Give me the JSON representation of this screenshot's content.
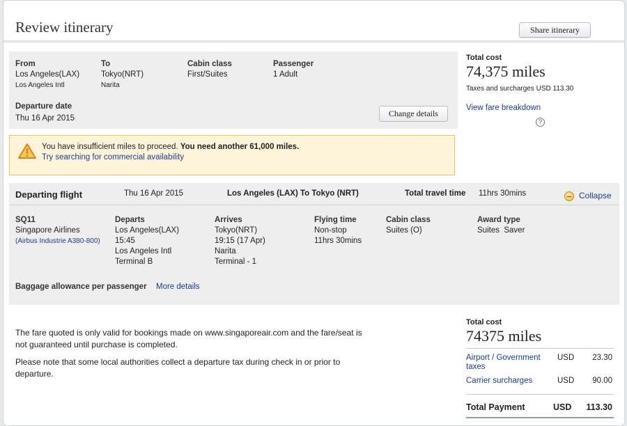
{
  "header": {
    "title": "Review itinerary",
    "share_label": "Share itinerary"
  },
  "summary": {
    "from_label": "From",
    "from_city": "Los Angeles(LAX)",
    "from_airport": "Los Angeles Intl",
    "to_label": "To",
    "to_city": "Tokyo(NRT)",
    "to_airport": "Narita",
    "cabin_label": "Cabin class",
    "cabin_value": "First/Suites",
    "passenger_label": "Passenger",
    "passenger_value": "1 Adult",
    "departure_label": "Departure date",
    "departure_value": "Thu 16 Apr 2015",
    "change_label": "Change details"
  },
  "total_top": {
    "label": "Total cost",
    "miles": "74,375 miles",
    "taxes": "Taxes and surcharges USD 113.30",
    "breakdown_link": "View fare breakdown",
    "help_glyph": "?"
  },
  "warning": {
    "text": "You have insufficient miles to proceed. ",
    "text_bold": "You need another 61,000 miles.",
    "link": "Try searching for commercial availability"
  },
  "flight": {
    "title": "Departing flight",
    "date": "Thu 16 Apr 2015",
    "route": "Los Angeles (LAX) To Tokyo (NRT)",
    "travel_time_label": "Total travel time",
    "travel_time_value": "11hrs 30mins",
    "collapse_label": "Collapse",
    "number": "SQ11",
    "airline": "Singapore Airlines",
    "aircraft": "(Airbus Industrie A380-800)",
    "departs_label": "Departs",
    "departs_city": "Los Angeles(LAX)",
    "departs_time": "15:45",
    "departs_airport": "Los Angeles Intl",
    "departs_terminal": "Terminal B",
    "arrives_label": "Arrives",
    "arrives_city": "Tokyo(NRT)",
    "arrives_time": "19:15 (17 Apr)",
    "arrives_airport": "Narita",
    "arrives_terminal": "Terminal - 1",
    "flying_label": "Flying time",
    "flying_stops": "Non-stop",
    "flying_duration": "11hrs 30mins",
    "cabin_label": "Cabin class",
    "cabin_value": "Suites (O)",
    "award_label": "Award type",
    "award_value": "Suites  Saver",
    "baggage_label": "Baggage allowance per passenger",
    "baggage_link": "More details"
  },
  "notes": {
    "line1": "The fare quoted is only valid for bookings made on www.singaporeair.com and the fare/seat is not guaranteed until purchase is completed.",
    "line2": "Please note that some local authorities collect a departure tax during check in or prior to departure."
  },
  "total_bottom": {
    "label": "Total cost",
    "miles": "74375 miles",
    "rows": [
      {
        "label": "Airport / Government taxes",
        "currency": "USD",
        "amount": "23.30"
      },
      {
        "label": "Carrier surcharges",
        "currency": "USD",
        "amount": "90.00"
      }
    ],
    "payment_label": "Total Payment",
    "payment_currency": "USD",
    "payment_amount": "113.30"
  },
  "colors": {
    "link": "#1a3d8f",
    "warning_bg": "#fdf4d9",
    "warning_border": "#e6c45a",
    "panel_bg": "#eeeeee"
  }
}
